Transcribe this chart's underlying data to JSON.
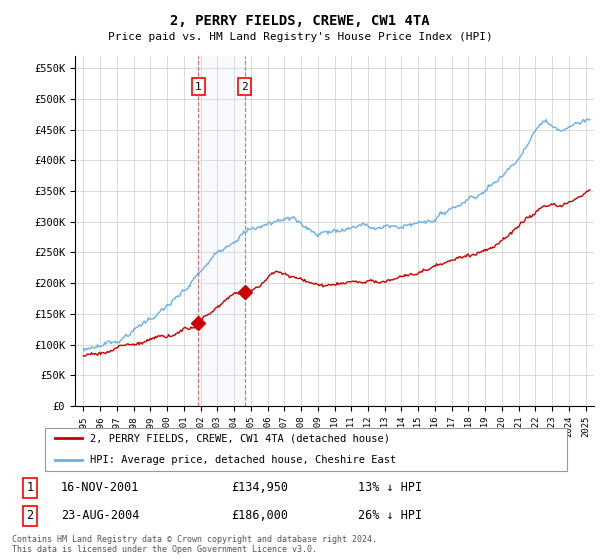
{
  "title": "2, PERRY FIELDS, CREWE, CW1 4TA",
  "subtitle": "Price paid vs. HM Land Registry's House Price Index (HPI)",
  "ylim": [
    0,
    570000
  ],
  "yticks": [
    0,
    50000,
    100000,
    150000,
    200000,
    250000,
    300000,
    350000,
    400000,
    450000,
    500000,
    550000
  ],
  "ytick_labels": [
    "£0",
    "£50K",
    "£100K",
    "£150K",
    "£200K",
    "£250K",
    "£300K",
    "£350K",
    "£400K",
    "£450K",
    "£500K",
    "£550K"
  ],
  "hpi_color": "#6ab0e8",
  "property_color": "#cc0000",
  "t1_year": 2001.875,
  "t1_price": 134950,
  "t2_year": 2004.625,
  "t2_price": 186000,
  "legend_property": "2, PERRY FIELDS, CREWE, CW1 4TA (detached house)",
  "legend_hpi": "HPI: Average price, detached house, Cheshire East",
  "row1_label": "1",
  "row1_date": "16-NOV-2001",
  "row1_price": "£134,950",
  "row1_pct": "13% ↓ HPI",
  "row2_label": "2",
  "row2_date": "23-AUG-2004",
  "row2_price": "£186,000",
  "row2_pct": "26% ↓ HPI",
  "footnote": "Contains HM Land Registry data © Crown copyright and database right 2024.\nThis data is licensed under the Open Government Licence v3.0.",
  "background_color": "#ffffff",
  "grid_color": "#cccccc",
  "span_color": "#dce8f5"
}
